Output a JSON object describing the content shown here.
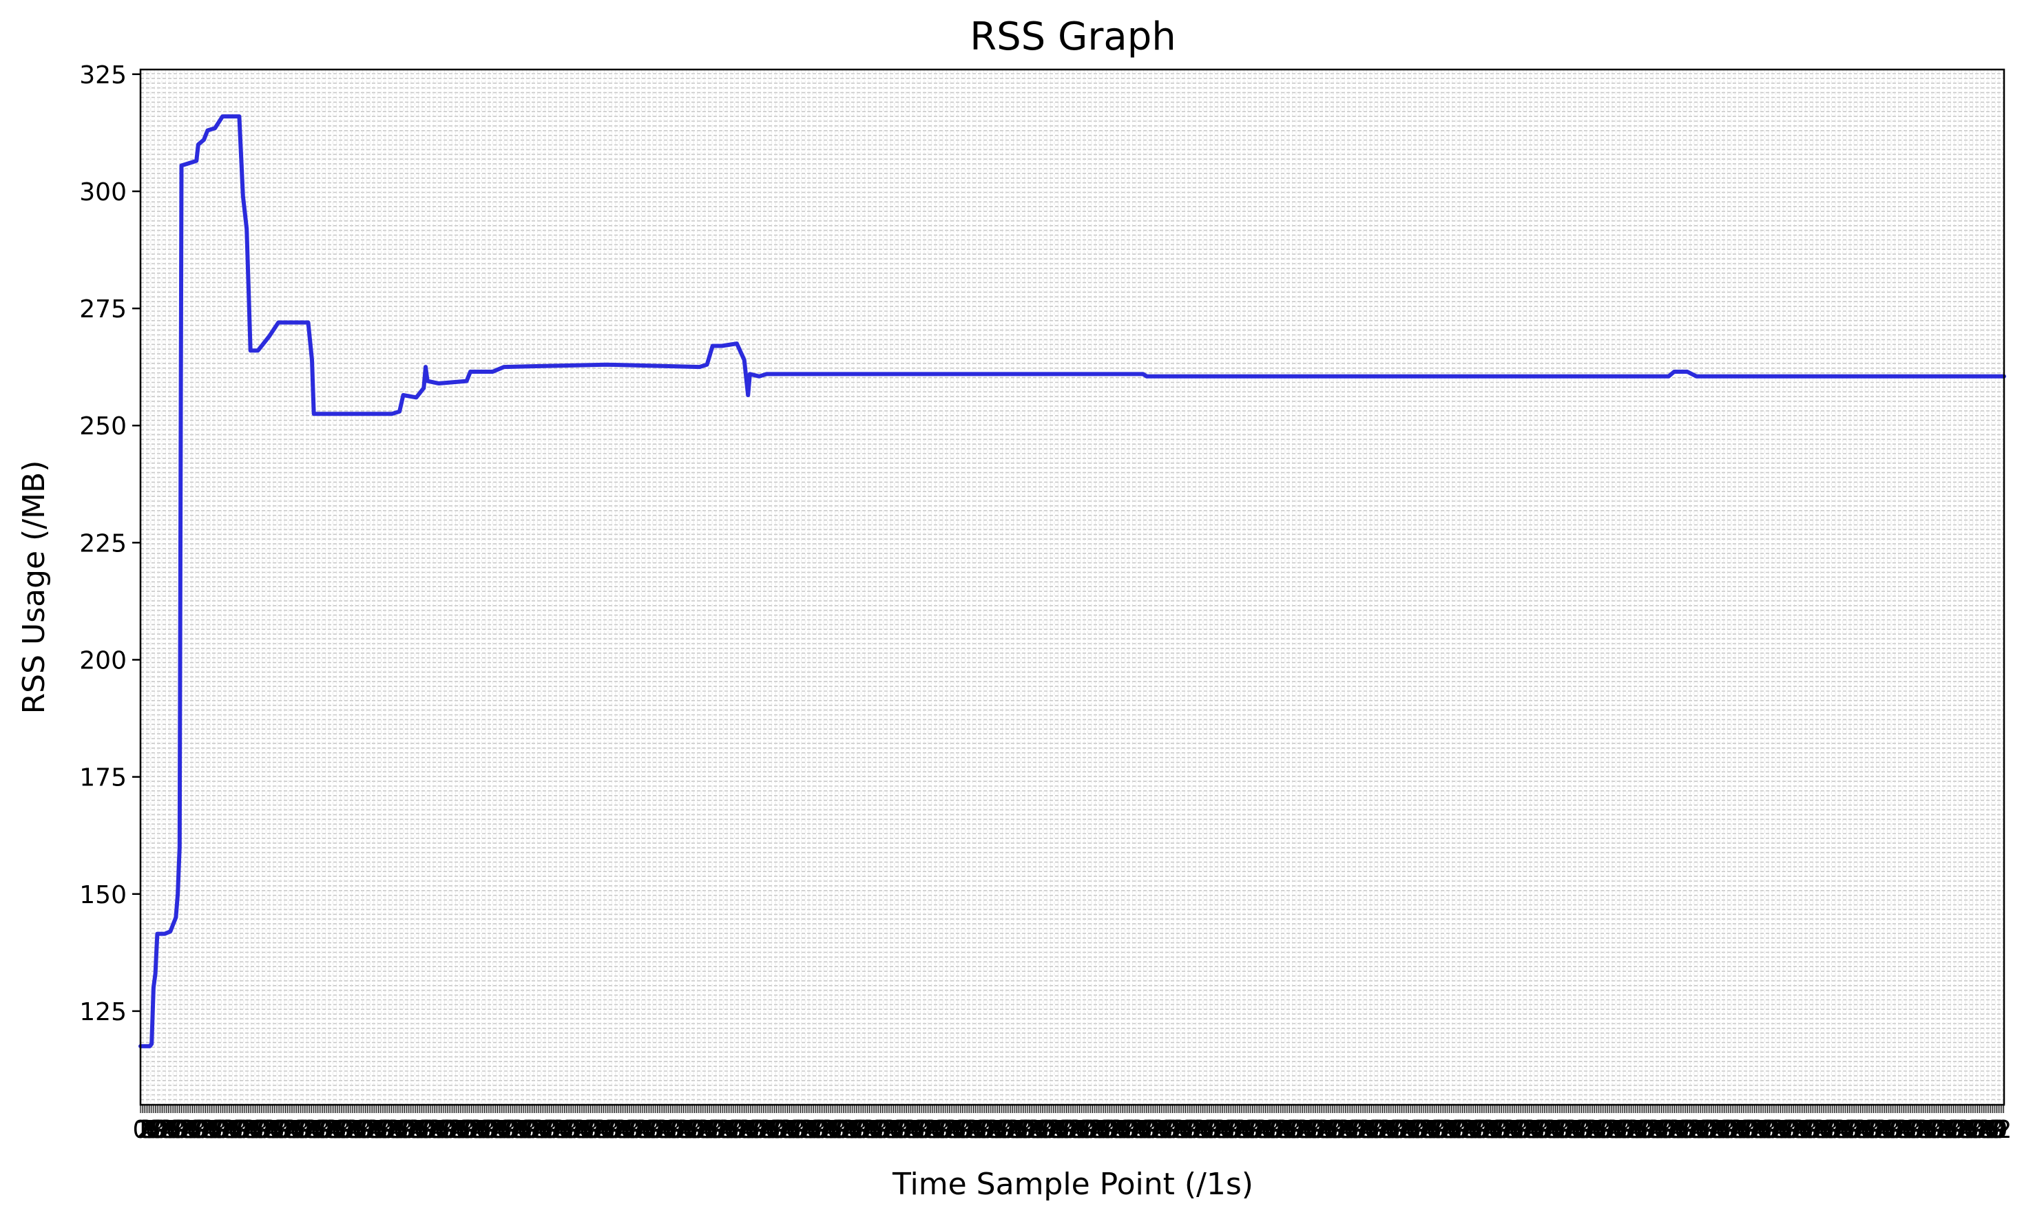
{
  "chart_data": {
    "type": "line",
    "title": "RSS Graph",
    "xlabel": "Time Sample Point (/1s)",
    "ylabel": "RSS Usage (/MB)",
    "xlim": [
      0,
      1000
    ],
    "ylim": [
      105,
      326
    ],
    "yticks": [
      125,
      150,
      175,
      200,
      225,
      250,
      275,
      300,
      325
    ],
    "x_tick_labels_note": "dense, overlapping one-per-sample tick labels",
    "grid": true,
    "legend": "none",
    "series": [
      {
        "color": "#2b2bdc",
        "points": [
          [
            0,
            117.5
          ],
          [
            5,
            117.5
          ],
          [
            6,
            118
          ],
          [
            7,
            130
          ],
          [
            8,
            133
          ],
          [
            9,
            141.5
          ],
          [
            13,
            141.5
          ],
          [
            16,
            142
          ],
          [
            19,
            145
          ],
          [
            20,
            150
          ],
          [
            21,
            160
          ],
          [
            22,
            305.5
          ],
          [
            26,
            306
          ],
          [
            30,
            306.5
          ],
          [
            31,
            310
          ],
          [
            34,
            311
          ],
          [
            36,
            313
          ],
          [
            40,
            313.5
          ],
          [
            44,
            316
          ],
          [
            53,
            316
          ],
          [
            55,
            299
          ],
          [
            57,
            292
          ],
          [
            59,
            266
          ],
          [
            63,
            266
          ],
          [
            66,
            267.5
          ],
          [
            69,
            269
          ],
          [
            74,
            272
          ],
          [
            90,
            272
          ],
          [
            92,
            264
          ],
          [
            93,
            252.5
          ],
          [
            135,
            252.5
          ],
          [
            139,
            253
          ],
          [
            141,
            256.5
          ],
          [
            148,
            256
          ],
          [
            152,
            258
          ],
          [
            153,
            262.5
          ],
          [
            154,
            259.5
          ],
          [
            160,
            259
          ],
          [
            175,
            259.5
          ],
          [
            177,
            261.5
          ],
          [
            189,
            261.5
          ],
          [
            195,
            262.5
          ],
          [
            250,
            263
          ],
          [
            300,
            262.5
          ],
          [
            304,
            263
          ],
          [
            307,
            267
          ],
          [
            312,
            267
          ],
          [
            320,
            267.5
          ],
          [
            324,
            264
          ],
          [
            326,
            256.5
          ],
          [
            327,
            261
          ],
          [
            332,
            260.5
          ],
          [
            336,
            261
          ],
          [
            380,
            261
          ],
          [
            500,
            261
          ],
          [
            538,
            261
          ],
          [
            540,
            260.5
          ],
          [
            820,
            260.5
          ],
          [
            823,
            261.5
          ],
          [
            830,
            261.5
          ],
          [
            835,
            260.5
          ],
          [
            1000,
            260.5
          ]
        ]
      }
    ]
  }
}
